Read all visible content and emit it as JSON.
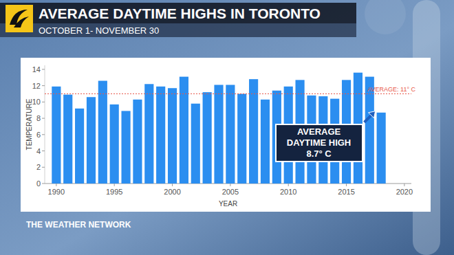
{
  "chart_data": {
    "type": "bar",
    "title": "AVERAGE DAYTIME HIGHS IN TORONTO",
    "subtitle": "OCTOBER 1- NOVEMBER 30",
    "x_label": "YEAR",
    "y_label": "TEMPERATURE",
    "x": [
      1990,
      1991,
      1992,
      1993,
      1994,
      1995,
      1996,
      1997,
      1998,
      1999,
      2000,
      2001,
      2002,
      2003,
      2004,
      2005,
      2006,
      2007,
      2008,
      2009,
      2010,
      2011,
      2012,
      2013,
      2014,
      2015,
      2016,
      2017,
      2018
    ],
    "values": [
      11.9,
      10.9,
      9.2,
      10.6,
      12.6,
      9.7,
      8.9,
      10.3,
      12.2,
      11.9,
      11.7,
      13.1,
      9.8,
      11.2,
      12.1,
      12.1,
      11.0,
      12.8,
      10.3,
      11.4,
      11.9,
      12.7,
      10.8,
      10.7,
      10.4,
      12.7,
      13.6,
      13.1,
      8.7
    ],
    "color": "#2b8ef0",
    "xlim": [
      1989,
      2020.6
    ],
    "xticks": [
      1990,
      1995,
      2000,
      2005,
      2010,
      2015,
      2020
    ],
    "ylim": [
      0,
      14.5
    ],
    "yticks": [
      0,
      2,
      4,
      6,
      8,
      10,
      12,
      14
    ],
    "grid": false,
    "reference_line": {
      "value": 11,
      "label": "AVERAGE: 11° C"
    },
    "annotation": "AVERAGE DAYTIME HIGH 8.7° C",
    "source": "THE WEATHER NETWORK"
  }
}
